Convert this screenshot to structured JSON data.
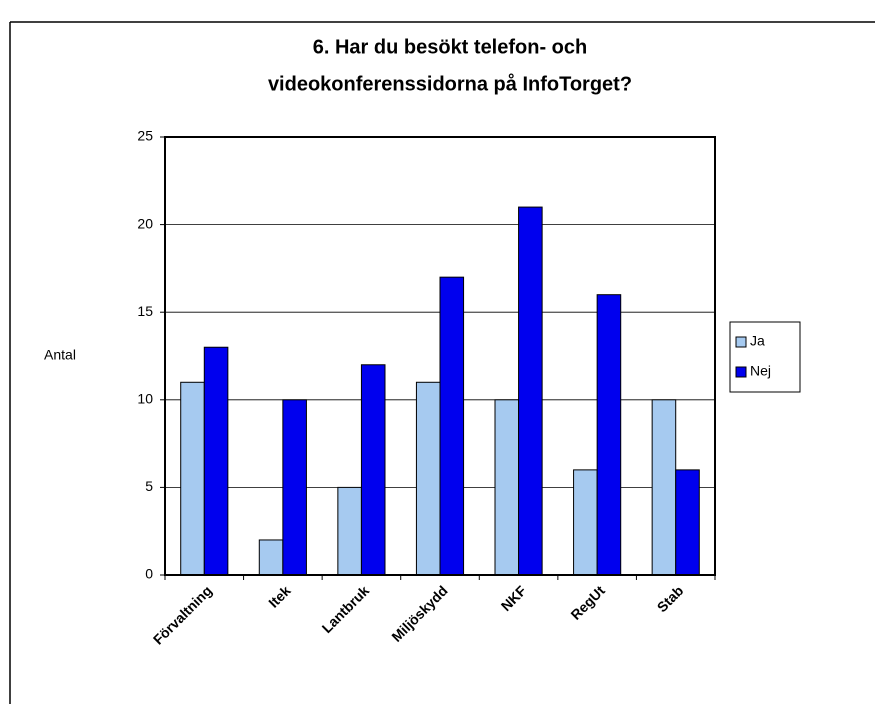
{
  "chart_data": {
    "type": "bar",
    "title": [
      "6. Har du besökt telefon- och",
      "videokonferenssidorna på InfoTorget?"
    ],
    "y_label": "Antal",
    "categories": [
      "Förvaltning",
      "Itek",
      "Lantbruk",
      "Miljöskydd",
      "NKF",
      "RegUt",
      "Stab"
    ],
    "series": [
      {
        "name": "Ja",
        "color": "#a6caf0",
        "values": [
          11,
          2,
          5,
          11,
          10,
          6,
          10
        ]
      },
      {
        "name": "Nej",
        "color": "#0000ee",
        "values": [
          13,
          10,
          12,
          17,
          21,
          16,
          6
        ]
      }
    ],
    "ylim": [
      0,
      25
    ],
    "yticks": [
      0,
      5,
      10,
      15,
      20,
      25
    ],
    "grid": true,
    "legend": "right"
  }
}
